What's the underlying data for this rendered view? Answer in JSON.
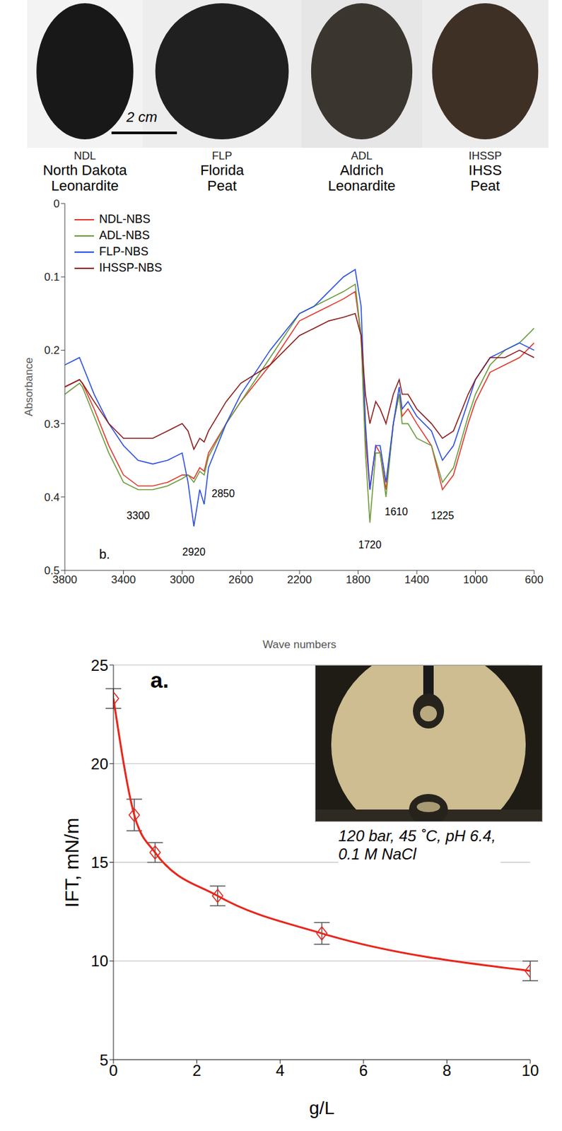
{
  "samples": [
    {
      "code": "NDL",
      "name": "North Dakota Leonardite"
    },
    {
      "code": "FLP",
      "name": "Florida Peat"
    },
    {
      "code": "ADL",
      "name": "Aldrich Leonardite"
    },
    {
      "code": "IHSSP",
      "name": "IHSS Peat"
    }
  ],
  "scale_bar": "2 cm",
  "chart_data": [
    {
      "type": "line",
      "panel_label": "b.",
      "x_label": "Wave numbers",
      "y_label": "Absorbance",
      "x": [
        3800,
        3700,
        3680,
        3600,
        3500,
        3400,
        3300,
        3200,
        3100,
        3000,
        2960,
        2920,
        2880,
        2850,
        2820,
        2700,
        2600,
        2400,
        2200,
        2100,
        2000,
        1900,
        1820,
        1780,
        1750,
        1720,
        1680,
        1650,
        1610,
        1560,
        1520,
        1500,
        1460,
        1400,
        1300,
        1225,
        1150,
        1050,
        1000,
        900,
        800,
        700,
        600
      ],
      "xlim": [
        3800,
        600
      ],
      "xticks": [
        3800,
        3400,
        3000,
        2600,
        2200,
        1800,
        1400,
        1000,
        600
      ],
      "ylim": [
        0.5,
        0
      ],
      "yticks": [
        0,
        0.1,
        0.2,
        0.3,
        0.4,
        0.5
      ],
      "grid": false,
      "legend": "upper left",
      "series": [
        {
          "name": "NDL-NBS",
          "color": "#e2382c",
          "values": [
            0.25,
            0.24,
            0.245,
            0.28,
            0.33,
            0.37,
            0.385,
            0.385,
            0.38,
            0.37,
            0.37,
            0.375,
            0.36,
            0.365,
            0.34,
            0.3,
            0.27,
            0.22,
            0.16,
            0.15,
            0.14,
            0.13,
            0.12,
            0.18,
            0.32,
            0.39,
            0.33,
            0.34,
            0.39,
            0.3,
            0.26,
            0.29,
            0.28,
            0.3,
            0.33,
            0.39,
            0.37,
            0.3,
            0.27,
            0.23,
            0.22,
            0.21,
            0.19
          ]
        },
        {
          "name": "ADL-NBS",
          "color": "#6c9b3c",
          "values": [
            0.26,
            0.245,
            0.25,
            0.29,
            0.34,
            0.38,
            0.39,
            0.39,
            0.385,
            0.375,
            0.37,
            0.38,
            0.365,
            0.37,
            0.345,
            0.3,
            0.27,
            0.21,
            0.15,
            0.14,
            0.13,
            0.12,
            0.11,
            0.18,
            0.34,
            0.435,
            0.34,
            0.34,
            0.4,
            0.3,
            0.26,
            0.3,
            0.3,
            0.32,
            0.33,
            0.38,
            0.36,
            0.29,
            0.26,
            0.22,
            0.2,
            0.19,
            0.17
          ]
        },
        {
          "name": "FLP-NBS",
          "color": "#2a4ee3",
          "values": [
            0.22,
            0.21,
            0.22,
            0.26,
            0.3,
            0.33,
            0.35,
            0.355,
            0.35,
            0.34,
            0.38,
            0.44,
            0.39,
            0.41,
            0.36,
            0.3,
            0.26,
            0.2,
            0.15,
            0.14,
            0.12,
            0.1,
            0.09,
            0.14,
            0.3,
            0.39,
            0.33,
            0.33,
            0.38,
            0.3,
            0.25,
            0.28,
            0.27,
            0.29,
            0.31,
            0.35,
            0.33,
            0.27,
            0.24,
            0.21,
            0.2,
            0.19,
            0.2
          ]
        },
        {
          "name": "IHSSP-NBS",
          "color": "#8b1c1c",
          "values": [
            0.25,
            0.24,
            0.245,
            0.27,
            0.3,
            0.32,
            0.32,
            0.32,
            0.31,
            0.3,
            0.31,
            0.335,
            0.32,
            0.325,
            0.31,
            0.27,
            0.245,
            0.22,
            0.18,
            0.17,
            0.16,
            0.155,
            0.15,
            0.18,
            0.26,
            0.3,
            0.27,
            0.28,
            0.3,
            0.26,
            0.24,
            0.26,
            0.26,
            0.28,
            0.3,
            0.32,
            0.31,
            0.26,
            0.24,
            0.21,
            0.21,
            0.2,
            0.21
          ]
        }
      ],
      "annotations": [
        {
          "text": "3300",
          "x": 3300,
          "y": 0.425
        },
        {
          "text": "2920",
          "x": 2920,
          "y": 0.475
        },
        {
          "text": "2850",
          "x": 2720,
          "y": 0.395
        },
        {
          "text": "1720",
          "x": 1720,
          "y": 0.465
        },
        {
          "text": "1610",
          "x": 1540,
          "y": 0.42
        },
        {
          "text": "1225",
          "x": 1225,
          "y": 0.425
        }
      ]
    },
    {
      "type": "line",
      "panel_label": "a.",
      "x_label": "g/L",
      "y_label": "IFT, mN/m",
      "x": [
        0,
        0.5,
        1,
        2.5,
        5,
        10
      ],
      "xlim": [
        0,
        10
      ],
      "xticks": [
        0,
        2,
        4,
        6,
        8,
        10
      ],
      "ylim": [
        5,
        25
      ],
      "yticks": [
        5,
        10,
        15,
        20,
        25
      ],
      "grid": true,
      "series": [
        {
          "color": "#e8261c",
          "values": [
            23.3,
            17.4,
            15.5,
            13.3,
            11.4,
            9.5
          ],
          "errors": [
            0.5,
            0.8,
            0.5,
            0.5,
            0.55,
            0.5
          ],
          "marker": "diamond",
          "line_style": "solid"
        }
      ],
      "inset_caption": "120 bar, 45 ˚C, pH 6.4, 0.1 M NaCl"
    }
  ]
}
